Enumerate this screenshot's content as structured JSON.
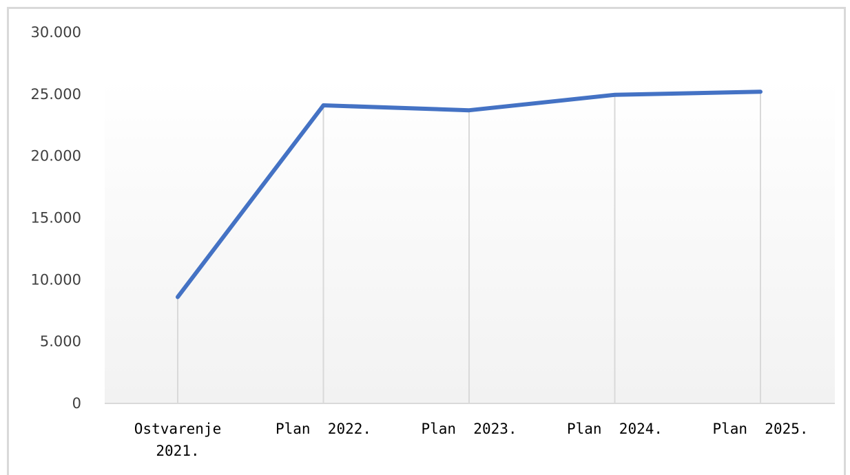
{
  "chart_data": {
    "type": "line",
    "categories": [
      "Ostvarenje 2021.",
      "Plan  2022.",
      "Plan  2023.",
      "Plan  2024.",
      "Plan  2025."
    ],
    "category_lines": [
      [
        "Ostvarenje",
        "2021."
      ],
      [
        "Plan  2022."
      ],
      [
        "Plan  2023."
      ],
      [
        "Plan  2024."
      ],
      [
        "Plan  2025."
      ]
    ],
    "values": [
      8600,
      24100,
      23700,
      24950,
      25200
    ],
    "ylim": [
      0,
      30000
    ],
    "y_ticks": [
      0,
      5000,
      10000,
      15000,
      20000,
      25000,
      30000
    ],
    "y_tick_labels": [
      "0",
      "5.000",
      "10.000",
      "15.000",
      "20.000",
      "25.000",
      "30.000"
    ],
    "title": "",
    "xlabel": "",
    "ylabel": "",
    "grid": "vertical drop lines at each category",
    "legend": "none",
    "colors": {
      "line": "#4472c4",
      "drop_line": "#d9d9d9",
      "axis": "#d9d9d9",
      "plot_bg_top": "#ffffff",
      "plot_bg_bottom": "#f2f2f2"
    }
  }
}
